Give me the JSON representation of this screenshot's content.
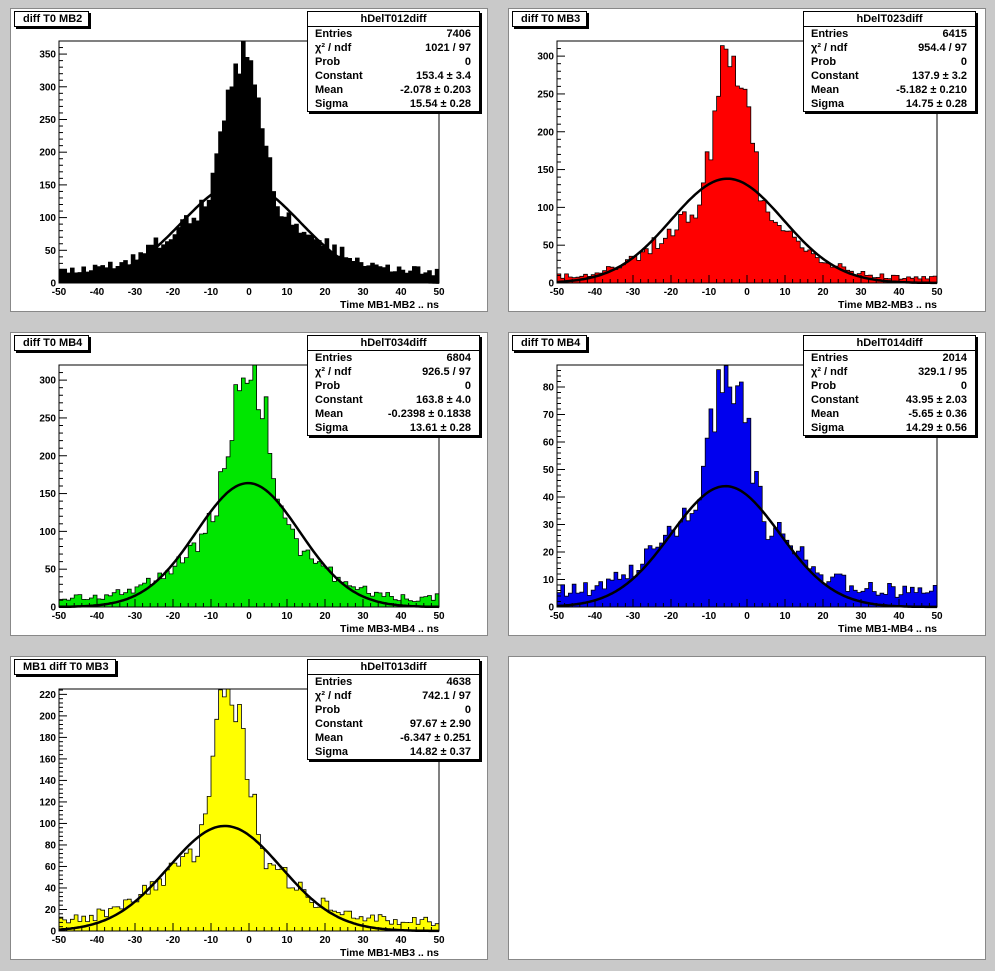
{
  "chart_data": [
    {
      "type": "histogram",
      "title": "diff T0 MB2",
      "hist_name": "hDelT012diff",
      "xlabel": "Time MB1-MB2  ..  ns",
      "xlim": [
        -50,
        50
      ],
      "ylim": [
        0,
        370
      ],
      "xticks": [
        -50,
        -40,
        -30,
        -20,
        -10,
        0,
        10,
        20,
        30,
        40,
        50
      ],
      "yticks": [
        0,
        50,
        100,
        150,
        200,
        250,
        300,
        350
      ],
      "fill_color": "#000000",
      "stats": {
        "entries": "7406",
        "chi2ndf": "1021 / 97",
        "prob": "0",
        "constant": "153.4 ± 3.4",
        "mean": "-2.078 ± 0.203",
        "sigma": "15.54 ± 0.28"
      },
      "fit": {
        "constant": 153.4,
        "mean": -2.078,
        "sigma": 15.54
      },
      "peak": {
        "value": 345,
        "mean": -1.5,
        "sigma": 6.0
      },
      "background": 16
    },
    {
      "type": "histogram",
      "title": "diff T0 MB3",
      "hist_name": "hDelT023diff",
      "xlabel": "Time MB2-MB3  ..  ns",
      "xlim": [
        -50,
        50
      ],
      "ylim": [
        0,
        320
      ],
      "xticks": [
        -50,
        -40,
        -30,
        -20,
        -10,
        0,
        10,
        20,
        30,
        40,
        50
      ],
      "yticks": [
        0,
        50,
        100,
        150,
        200,
        250,
        300
      ],
      "fill_color": "#ff0000",
      "stats": {
        "entries": "6415",
        "chi2ndf": "954.4 / 97",
        "prob": "0",
        "constant": "137.9 ± 3.2",
        "mean": "-5.182 ± 0.210",
        "sigma": "14.75 ± 0.28"
      },
      "fit": {
        "constant": 137.9,
        "mean": -5.182,
        "sigma": 14.75
      },
      "peak": {
        "value": 300,
        "mean": -4.0,
        "sigma": 5.5
      },
      "background": 6
    },
    {
      "type": "histogram",
      "title": "diff T0 MB4",
      "hist_name": "hDelT034diff",
      "xlabel": "Time MB3-MB4  ..  ns",
      "xlim": [
        -50,
        50
      ],
      "ylim": [
        0,
        320
      ],
      "xticks": [
        -50,
        -40,
        -30,
        -20,
        -10,
        0,
        10,
        20,
        30,
        40,
        50
      ],
      "yticks": [
        0,
        50,
        100,
        150,
        200,
        250,
        300
      ],
      "fill_color": "#00e600",
      "stats": {
        "entries": "6804",
        "chi2ndf": "926.5 / 97",
        "prob": "0",
        "constant": "163.8 ± 4.0",
        "mean": "-0.2398 ± 0.1838",
        "sigma": "13.61 ± 0.28"
      },
      "fit": {
        "constant": 163.8,
        "mean": -0.2398,
        "sigma": 13.61
      },
      "peak": {
        "value": 300,
        "mean": 0.0,
        "sigma": 6.5
      },
      "background": 10
    },
    {
      "type": "histogram",
      "title": "diff T0 MB4",
      "hist_name": "hDelT014diff",
      "xlabel": "Time MB1-MB4  ..  ns",
      "xlim": [
        -50,
        50
      ],
      "ylim": [
        0,
        88
      ],
      "xticks": [
        -50,
        -40,
        -30,
        -20,
        -10,
        0,
        10,
        20,
        30,
        40,
        50
      ],
      "yticks": [
        0,
        10,
        20,
        30,
        40,
        50,
        60,
        70,
        80
      ],
      "fill_color": "#0000ee",
      "stats": {
        "entries": "2014",
        "chi2ndf": "329.1 / 95",
        "prob": "0",
        "constant": "43.95 ± 2.03",
        "mean": "-5.65 ± 0.36",
        "sigma": "14.29 ± 0.56"
      },
      "fit": {
        "constant": 43.95,
        "mean": -5.65,
        "sigma": 14.29
      },
      "peak": {
        "value": 80,
        "mean": -5.0,
        "sigma": 6.5
      },
      "background": 5
    },
    {
      "type": "histogram",
      "title": "MB1 diff T0 MB3",
      "hist_name": "hDelT013diff",
      "xlabel": "Time MB1-MB3  ..  ns",
      "xlim": [
        -50,
        50
      ],
      "ylim": [
        0,
        225
      ],
      "xticks": [
        -50,
        -40,
        -30,
        -20,
        -10,
        0,
        10,
        20,
        30,
        40,
        50
      ],
      "yticks": [
        0,
        20,
        40,
        60,
        80,
        100,
        120,
        140,
        160,
        180,
        200,
        220
      ],
      "fill_color": "#ffff00",
      "stats": {
        "entries": "4638",
        "chi2ndf": "742.1 / 97",
        "prob": "0",
        "constant": "97.67 ± 2.90",
        "mean": "-6.347 ± 0.251",
        "sigma": "14.82 ± 0.37"
      },
      "fit": {
        "constant": 97.67,
        "mean": -6.347,
        "sigma": 14.82
      },
      "peak": {
        "value": 210,
        "mean": -5.0,
        "sigma": 5.5
      },
      "background": 8
    }
  ],
  "labels": {
    "entries": "Entries",
    "chi2": "χ² / ndf",
    "prob": "Prob",
    "constant": "Constant",
    "mean": "Mean",
    "sigma": "Sigma"
  }
}
